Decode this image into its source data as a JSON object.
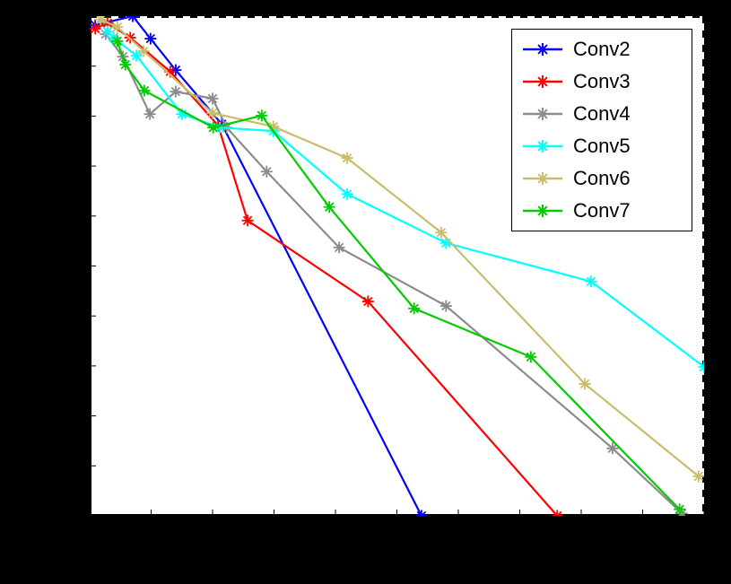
{
  "figure": {
    "background_color": "#000000",
    "plot_background_color": "#ffffff",
    "box_style": "top and right borders dashed, left and bottom axes solid"
  },
  "chart_data": {
    "type": "line",
    "title": "",
    "xlabel": "",
    "ylabel": "",
    "xlim": [
      0,
      1
    ],
    "ylim": [
      0,
      1
    ],
    "grid": false,
    "legend_position": "top-right",
    "marker": "asterisk",
    "series": [
      {
        "name": "Conv2",
        "color": "#0000ff",
        "points": [
          [
            0.009,
            0.982
          ],
          [
            0.07,
            1.0
          ],
          [
            0.099,
            0.955
          ],
          [
            0.14,
            0.892
          ],
          [
            0.215,
            0.784
          ],
          [
            0.54,
            0.0
          ]
        ]
      },
      {
        "name": "Conv3",
        "color": "#ff0000",
        "points": [
          [
            0.009,
            0.975
          ],
          [
            0.029,
            0.986
          ],
          [
            0.066,
            0.957
          ],
          [
            0.131,
            0.889
          ],
          [
            0.209,
            0.781
          ],
          [
            0.257,
            0.591
          ],
          [
            0.453,
            0.429
          ],
          [
            0.761,
            0.0
          ]
        ]
      },
      {
        "name": "Conv4",
        "color": "#8c8c8c",
        "points": [
          [
            0.026,
            0.964
          ],
          [
            0.054,
            0.919
          ],
          [
            0.098,
            0.804
          ],
          [
            0.14,
            0.849
          ],
          [
            0.2,
            0.835
          ],
          [
            0.223,
            0.777
          ],
          [
            0.288,
            0.689
          ],
          [
            0.406,
            0.537
          ],
          [
            0.58,
            0.42
          ],
          [
            0.851,
            0.135
          ],
          [
            0.964,
            0.005
          ]
        ]
      },
      {
        "name": "Conv5",
        "color": "#00ffff",
        "points": [
          [
            0.029,
            0.969
          ],
          [
            0.039,
            0.957
          ],
          [
            0.076,
            0.921
          ],
          [
            0.15,
            0.804
          ],
          [
            0.212,
            0.777
          ],
          [
            0.299,
            0.77
          ],
          [
            0.419,
            0.644
          ],
          [
            0.58,
            0.546
          ],
          [
            0.816,
            0.469
          ],
          [
            1.0,
            0.298
          ]
        ]
      },
      {
        "name": "Conv6",
        "color": "#c9bc6a",
        "points": [
          [
            0.018,
            0.993
          ],
          [
            0.045,
            0.978
          ],
          [
            0.088,
            0.93
          ],
          [
            0.2,
            0.806
          ],
          [
            0.299,
            0.779
          ],
          [
            0.419,
            0.716
          ],
          [
            0.572,
            0.567
          ],
          [
            0.806,
            0.264
          ],
          [
            0.991,
            0.079
          ]
        ]
      },
      {
        "name": "Conv7",
        "color": "#00cc00",
        "points": [
          [
            0.045,
            0.95
          ],
          [
            0.058,
            0.903
          ],
          [
            0.089,
            0.851
          ],
          [
            0.201,
            0.777
          ],
          [
            0.28,
            0.801
          ],
          [
            0.39,
            0.618
          ],
          [
            0.528,
            0.415
          ],
          [
            0.718,
            0.318
          ],
          [
            0.96,
            0.013
          ]
        ]
      }
    ]
  },
  "legend": {
    "items": [
      {
        "label": "Conv2",
        "color": "#0000ff"
      },
      {
        "label": "Conv3",
        "color": "#ff0000"
      },
      {
        "label": "Conv4",
        "color": "#8c8c8c"
      },
      {
        "label": "Conv5",
        "color": "#00ffff"
      },
      {
        "label": "Conv6",
        "color": "#c9bc6a"
      },
      {
        "label": "Conv7",
        "color": "#00cc00"
      }
    ]
  }
}
